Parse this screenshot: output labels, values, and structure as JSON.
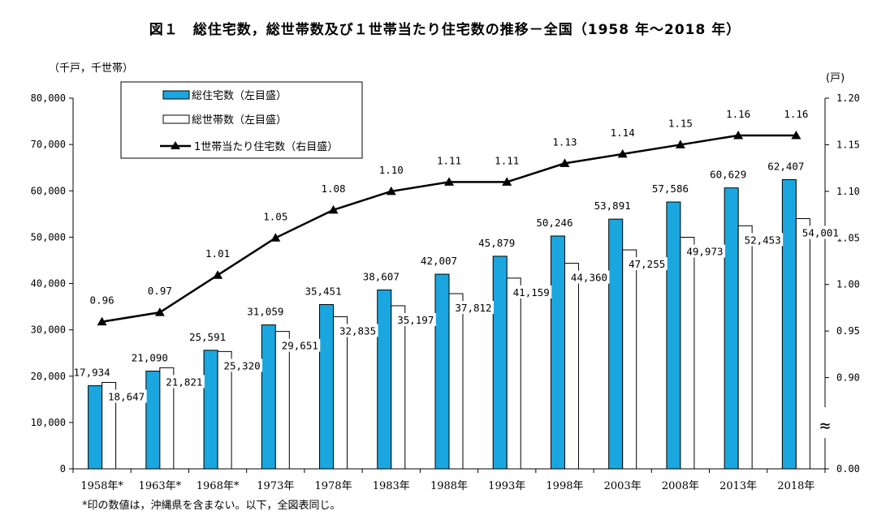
{
  "title": "図１　総住宅数，総世帯数及び１世帯当たり住宅数の推移－全国（1958 年～2018 年）",
  "left_unit": "（千戸，千世帯）",
  "right_unit": "(戸)",
  "footnote": "*印の数値は，沖縄県を含まない。以下，全図表同じ。",
  "axis_break_mark": "≈",
  "colors": {
    "housing_bar": "#1aa7e0",
    "household_bar": "#ffffff",
    "line": "#000000"
  },
  "chart_data": {
    "type": "bar",
    "categories": [
      "1958年*",
      "1963年*",
      "1968年*",
      "1973年",
      "1978年",
      "1983年",
      "1988年",
      "1993年",
      "1998年",
      "2003年",
      "2008年",
      "2013年",
      "2018年"
    ],
    "series": [
      {
        "name": "総住宅数（左目盛）",
        "type": "bar",
        "axis": "left",
        "values": [
          17934,
          21090,
          25591,
          31059,
          35451,
          38607,
          42007,
          45879,
          50246,
          53891,
          57586,
          60629,
          62407
        ],
        "labels": [
          "17,934",
          "21,090",
          "25,591",
          "31,059",
          "35,451",
          "38,607",
          "42,007",
          "45,879",
          "50,246",
          "53,891",
          "57,586",
          "60,629",
          "62,407"
        ]
      },
      {
        "name": "総世帯数（左目盛）",
        "type": "bar",
        "axis": "left",
        "values": [
          18647,
          21821,
          25320,
          29651,
          32835,
          35197,
          37812,
          41159,
          44360,
          47255,
          49973,
          52453,
          54001
        ],
        "labels": [
          "18,647",
          "21,821",
          "25,320",
          "29,651",
          "32,835",
          "35,197",
          "37,812",
          "41,159",
          "44,360",
          "47,255",
          "49,973",
          "52,453",
          "54,001"
        ]
      },
      {
        "name": "1世帯当たり住宅数（右目盛）",
        "type": "line",
        "axis": "right",
        "marker": "triangle",
        "values": [
          0.96,
          0.97,
          1.01,
          1.05,
          1.08,
          1.1,
          1.11,
          1.11,
          1.13,
          1.14,
          1.15,
          1.16,
          1.16
        ],
        "labels": [
          "0.96",
          "0.97",
          "1.01",
          "1.05",
          "1.08",
          "1.10",
          "1.11",
          "1.11",
          "1.13",
          "1.14",
          "1.15",
          "1.16",
          "1.16"
        ]
      }
    ],
    "y_left": {
      "ylim": [
        0,
        80000
      ],
      "ticks": [
        0,
        10000,
        20000,
        30000,
        40000,
        50000,
        60000,
        70000,
        80000
      ],
      "tick_labels": [
        "0",
        "10,000",
        "20,000",
        "30,000",
        "40,000",
        "50,000",
        "60,000",
        "70,000",
        "80,000"
      ]
    },
    "y_right": {
      "ylim_upper": [
        0.85,
        1.2
      ],
      "axis_break": true,
      "ticks": [
        0.9,
        0.95,
        1.0,
        1.05,
        1.1,
        1.15,
        1.2
      ],
      "tick_labels": [
        "0.90",
        "0.95",
        "1.00",
        "1.05",
        "1.10",
        "1.15",
        "1.20"
      ],
      "bottom_label": "0.00"
    },
    "legend": {
      "position": "top-left"
    },
    "grid": false
  }
}
